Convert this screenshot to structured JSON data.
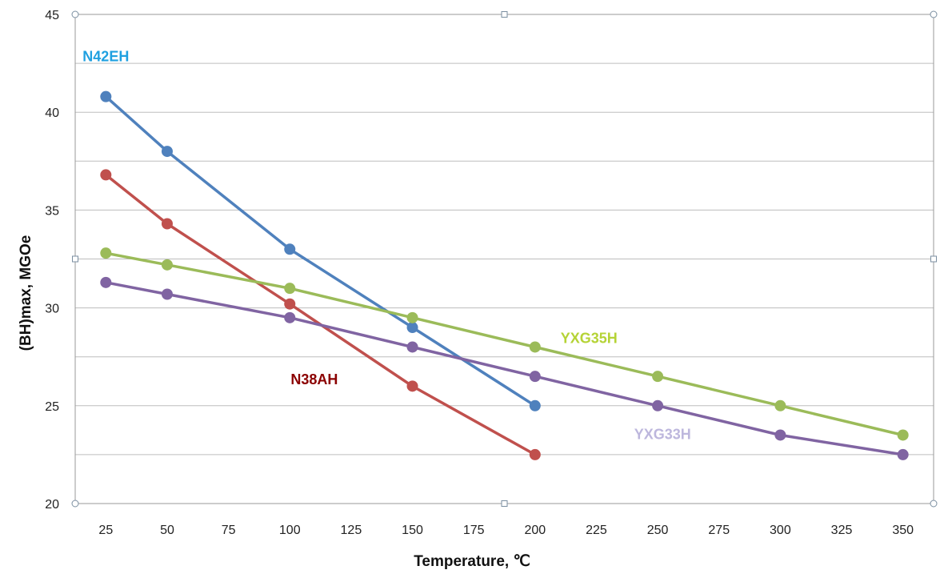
{
  "chart_data": {
    "type": "line",
    "xlabel": "Temperature, ℃",
    "ylabel": "(BH)max, MGOe",
    "xlim": [
      12.5,
      362.5
    ],
    "ylim": [
      20,
      45
    ],
    "xticks": [
      25,
      50,
      75,
      100,
      125,
      150,
      175,
      200,
      225,
      250,
      275,
      300,
      325,
      350
    ],
    "yticks": [
      20,
      25,
      30,
      35,
      40,
      45
    ],
    "grid": "horizontal",
    "series": [
      {
        "name": "N42EH",
        "color": "#4F81BD",
        "label_color": "#1FA0E0",
        "label_anchor_x": 25,
        "label_anchor_y": 42.6,
        "x": [
          25,
          50,
          100,
          150,
          200
        ],
        "y": [
          40.8,
          38.0,
          33.0,
          29.0,
          25.0
        ]
      },
      {
        "name": "N38AH",
        "color": "#C0504D",
        "label_color": "#8B0000",
        "label_anchor_x": 110,
        "label_anchor_y": 26.1,
        "x": [
          25,
          50,
          100,
          150,
          200
        ],
        "y": [
          36.8,
          34.3,
          30.2,
          26.0,
          22.5
        ]
      },
      {
        "name": "YXG35H",
        "color": "#9BBB59",
        "label_color": "#B5D336",
        "label_anchor_x": 222,
        "label_anchor_y": 28.2,
        "x": [
          25,
          50,
          100,
          150,
          200,
          250,
          300,
          350
        ],
        "y": [
          32.8,
          32.2,
          31.0,
          29.5,
          28.0,
          26.5,
          25.0,
          23.5
        ]
      },
      {
        "name": "YXG33H",
        "color": "#8064A2",
        "label_color": "#BDB7DD",
        "label_anchor_x": 252,
        "label_anchor_y": 23.3,
        "x": [
          25,
          50,
          100,
          150,
          200,
          250,
          300,
          350
        ],
        "y": [
          31.3,
          30.7,
          29.5,
          28.0,
          26.5,
          25.0,
          23.5,
          22.5
        ]
      }
    ]
  }
}
